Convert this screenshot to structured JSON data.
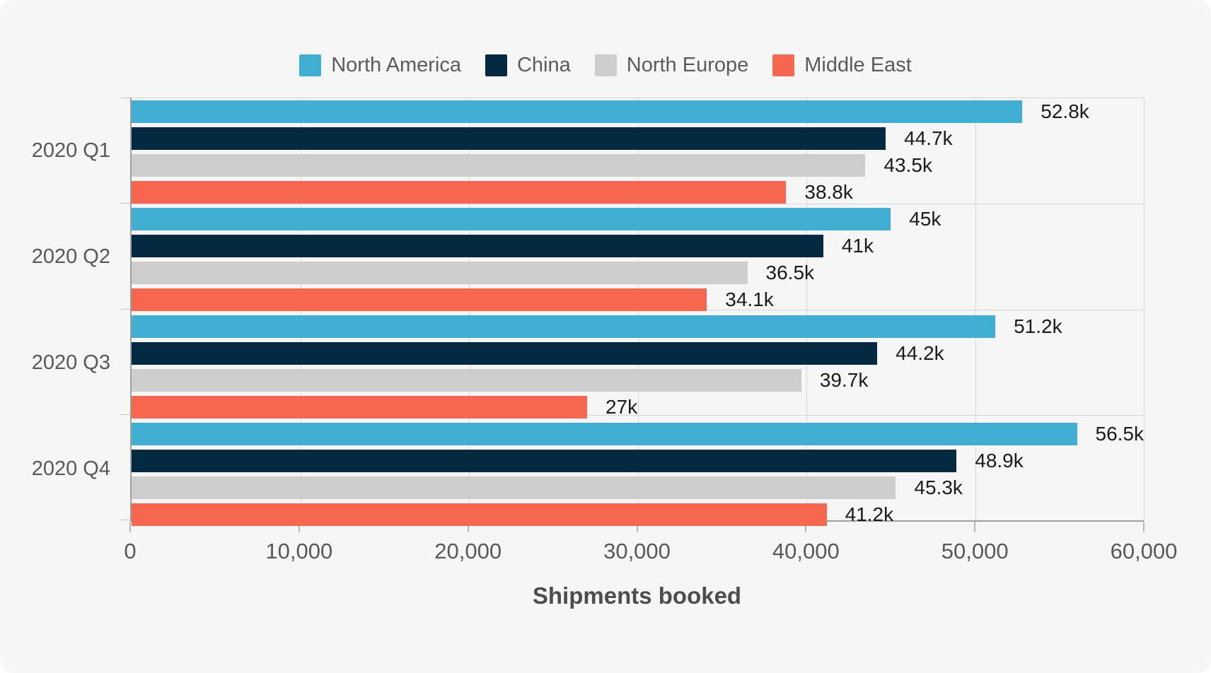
{
  "chart_data": {
    "type": "bar",
    "orientation": "horizontal",
    "title": "",
    "xlabel": "Shipments booked",
    "ylabel": "",
    "xlim": [
      0,
      60000
    ],
    "grid": "vertical",
    "legend_position": "top-center",
    "categories": [
      "2020 Q1",
      "2020 Q2",
      "2020 Q3",
      "2020 Q4"
    ],
    "series": [
      {
        "name": "North America",
        "color": "#41aed4",
        "values": [
          52800,
          45000,
          51200,
          56500
        ],
        "value_labels": [
          "52.8k",
          "45k",
          "51.2k",
          "56.5k"
        ]
      },
      {
        "name": "China",
        "color": "#042940",
        "values": [
          44700,
          41000,
          44200,
          48900
        ],
        "value_labels": [
          "44.7k",
          "41k",
          "44.2k",
          "48.9k"
        ]
      },
      {
        "name": "North Europe",
        "color": "#cdcdcd",
        "values": [
          43500,
          36500,
          39700,
          45300
        ],
        "value_labels": [
          "43.5k",
          "36.5k",
          "39.7k",
          "45.3k"
        ]
      },
      {
        "name": "Middle East",
        "color": "#f7664f",
        "values": [
          38800,
          34100,
          27000,
          41200
        ],
        "value_labels": [
          "38.8k",
          "34.1k",
          "27k",
          "41.2k"
        ]
      }
    ],
    "x_ticks": [
      {
        "value": 0,
        "label": "0"
      },
      {
        "value": 10000,
        "label": "10,000"
      },
      {
        "value": 20000,
        "label": "20,000"
      },
      {
        "value": 30000,
        "label": "30,000"
      },
      {
        "value": 40000,
        "label": "40,000"
      },
      {
        "value": 50000,
        "label": "50,000"
      },
      {
        "value": 60000,
        "label": "60,000"
      }
    ],
    "colors": {
      "card_background": "#f6f6f6",
      "gridline": "#d6d6d6",
      "axis_line": "#9ea1a3",
      "tick_text": "#57585b",
      "value_text": "#1b1b1b",
      "axis_title_text": "#4c4d4f"
    }
  }
}
